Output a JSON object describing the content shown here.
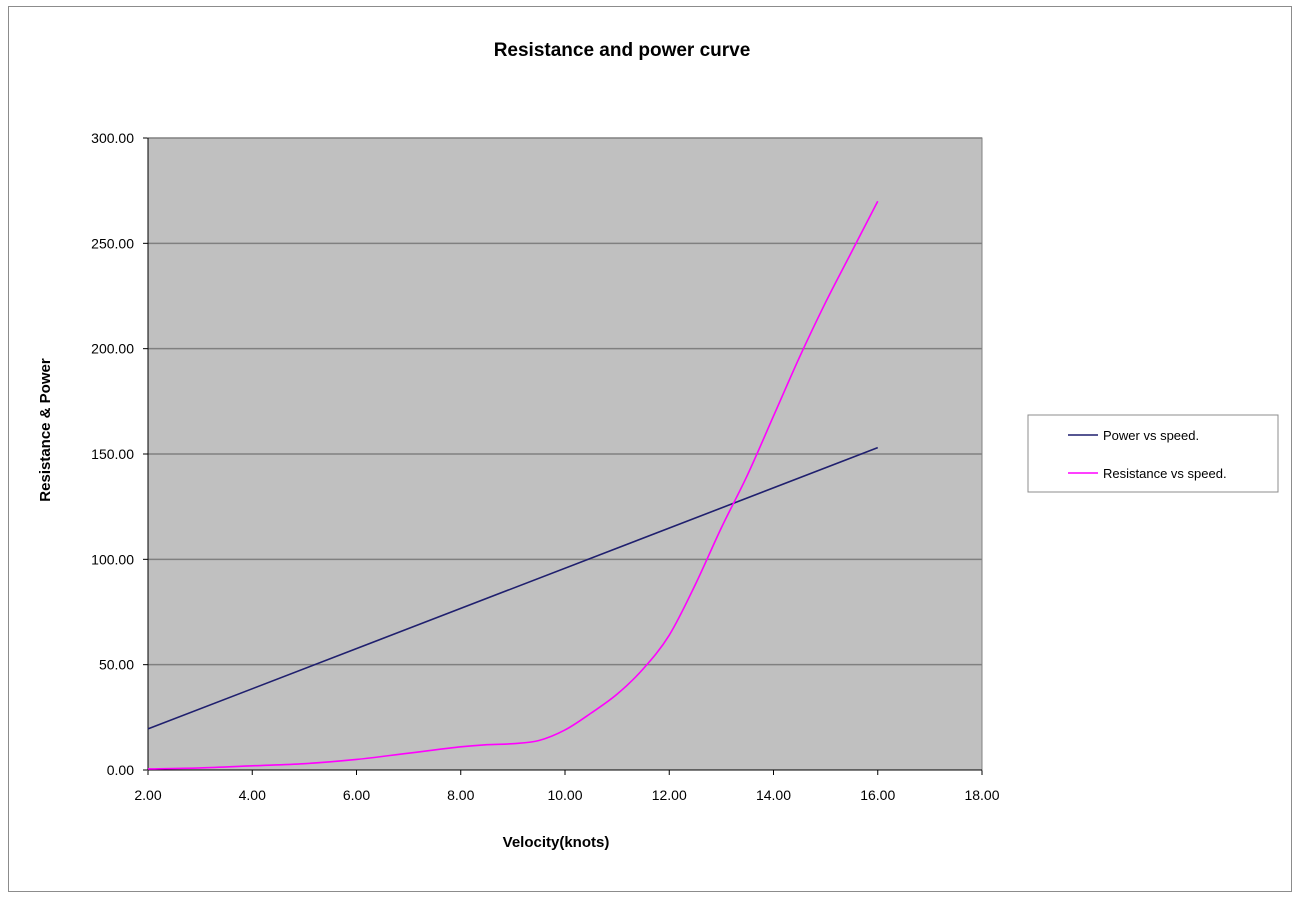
{
  "chart_data": {
    "type": "line",
    "title": "Resistance and power curve",
    "xlabel": "Velocity(knots)",
    "ylabel": "Resistance & Power",
    "xlim": [
      2,
      18
    ],
    "ylim": [
      0,
      300
    ],
    "x_ticks": [
      "2.00",
      "4.00",
      "6.00",
      "8.00",
      "10.00",
      "12.00",
      "14.00",
      "16.00",
      "18.00"
    ],
    "y_ticks": [
      "0.00",
      "50.00",
      "100.00",
      "150.00",
      "200.00",
      "250.00",
      "300.00"
    ],
    "grid": "horizontal",
    "legend_position": "right",
    "plot_background": "#c0c0c0",
    "series": [
      {
        "name": "Power vs  speed.",
        "color": "#1f1f6e",
        "x": [
          2,
          16
        ],
        "y": [
          19.5,
          153
        ]
      },
      {
        "name": "Resistance vs speed.",
        "color": "#ff00ff",
        "x": [
          2,
          3,
          4,
          5,
          6,
          7,
          8,
          8.5,
          9,
          9.5,
          10,
          10.5,
          11,
          11.5,
          12,
          12.5,
          13,
          13.5,
          14,
          14.5,
          15,
          15.5,
          16
        ],
        "y": [
          0.5,
          1,
          2,
          3,
          5,
          8,
          11,
          12,
          12.5,
          14,
          19,
          27,
          36,
          48,
          64,
          88,
          115,
          140,
          168,
          196,
          222,
          246,
          270
        ]
      }
    ]
  }
}
